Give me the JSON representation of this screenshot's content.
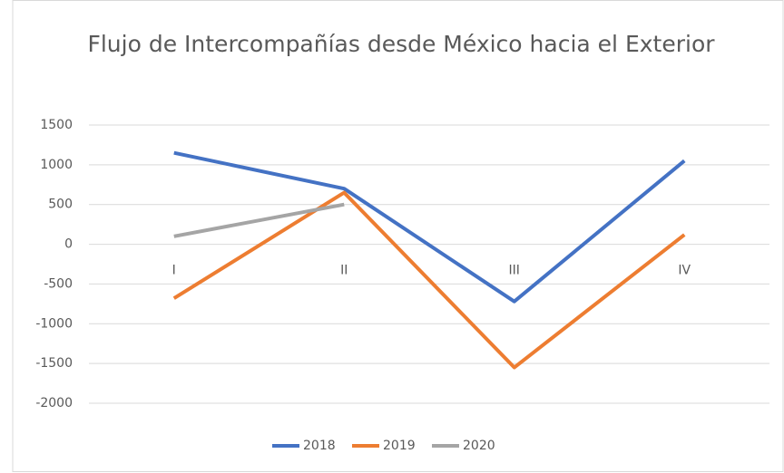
{
  "chart_data": {
    "type": "line",
    "title": "Flujo de Intercompañías desde México hacia el Exterior",
    "categories": [
      "I",
      "II",
      "III",
      "IV"
    ],
    "series": [
      {
        "name": "2018",
        "color": "#4472c4",
        "values": [
          1150,
          700,
          -720,
          1050
        ]
      },
      {
        "name": "2019",
        "color": "#ed7d31",
        "values": [
          -680,
          650,
          -1550,
          120
        ]
      },
      {
        "name": "2020",
        "color": "#a5a5a5",
        "values": [
          100,
          500,
          null,
          null
        ]
      }
    ],
    "ylim": [
      -2000,
      1500
    ],
    "yticks": [
      -2000,
      -1500,
      -1000,
      -500,
      0,
      500,
      1000,
      1500
    ],
    "grid": true,
    "legend": "bottom"
  }
}
